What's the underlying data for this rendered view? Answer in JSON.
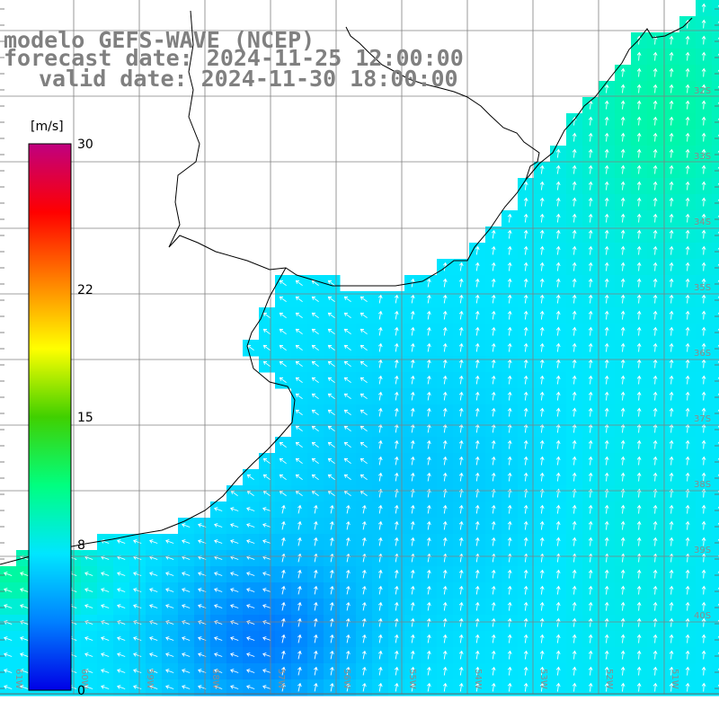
{
  "title": {
    "model": "modelo GEFS-WAVE (NCEP)",
    "forecast": "forecast date: 2024-11-25 12:00:00",
    "valid": "valid date: 2024-11-30 18:00:00"
  },
  "colorbar": {
    "unit": "[m/s]",
    "min": 0,
    "max": 30,
    "labels": [
      "30",
      "22",
      "15",
      "8",
      "0"
    ],
    "label_values": [
      30,
      22,
      15,
      8,
      0
    ],
    "colors": [
      "#0000e6",
      "#0080ff",
      "#00e6ff",
      "#00ff80",
      "#40d000",
      "#ffff00",
      "#ff8000",
      "#ff0000",
      "#c00080"
    ]
  },
  "axes": {
    "lon_labels": [
      "61W",
      "60W",
      "59W",
      "58W",
      "57W",
      "56W",
      "55W",
      "54W",
      "53W",
      "52W",
      "51W"
    ],
    "lat_labels": [
      "32S",
      "33S",
      "34S",
      "35S",
      "36S",
      "37S",
      "38S",
      "39S",
      "40S"
    ]
  },
  "grid_color": "#808080",
  "coast_color": "#000000",
  "arrow_color": "#ffffff"
}
